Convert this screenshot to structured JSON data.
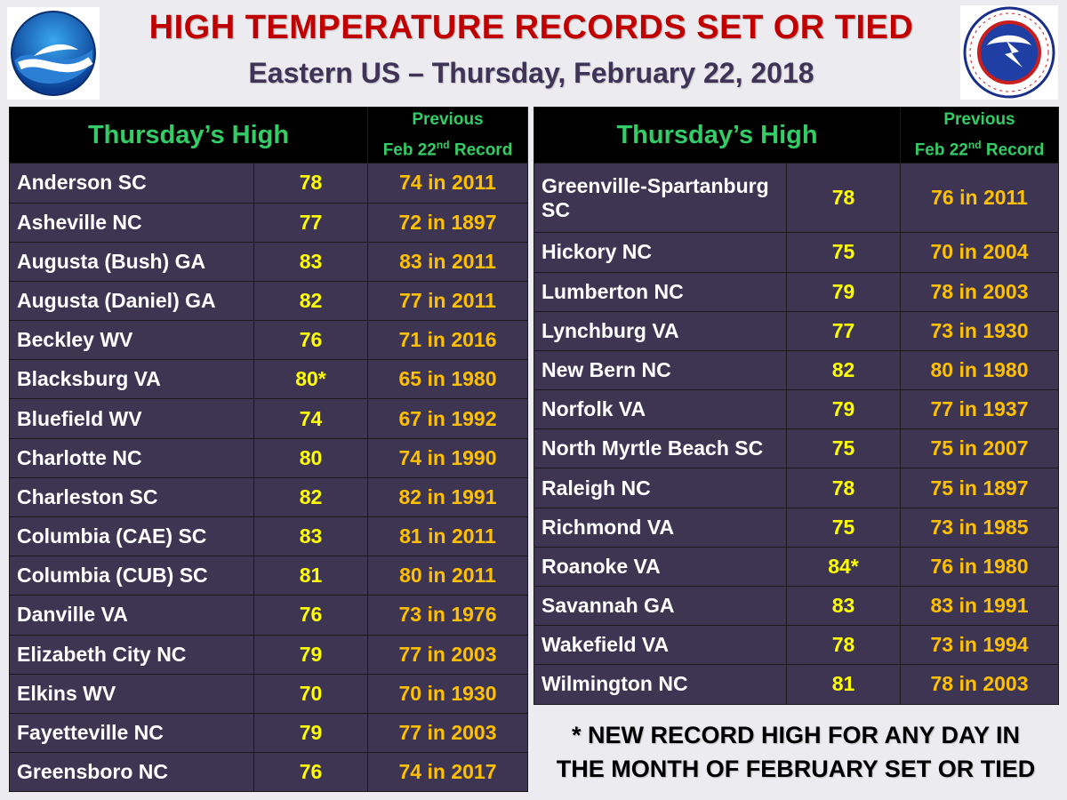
{
  "header": {
    "title": "HIGH TEMPERATURE RECORDS SET OR TIED",
    "subtitle": "Eastern US – Thursday, February 22, 2018"
  },
  "logos": {
    "left": {
      "name": "noaa-logo",
      "text": "NOAA"
    },
    "right": {
      "name": "nws-logo",
      "text": "NATIONAL WEATHER SERVICE"
    }
  },
  "table_headers": {
    "high": "Thursday’s High",
    "prev_line1": "Previous",
    "prev_line2_a": "Feb 22",
    "prev_line2_sup": "nd",
    "prev_line2_b": " Record"
  },
  "left_rows": [
    {
      "city": "Anderson SC",
      "high": "78",
      "prev": "74 in 2011"
    },
    {
      "city": "Asheville NC",
      "high": "77",
      "prev": "72 in 1897"
    },
    {
      "city": "Augusta (Bush) GA",
      "high": "83",
      "prev": "83 in 2011"
    },
    {
      "city": "Augusta (Daniel) GA",
      "high": "82",
      "prev": "77 in 2011"
    },
    {
      "city": "Beckley WV",
      "high": "76",
      "prev": "71 in 2016"
    },
    {
      "city": "Blacksburg VA",
      "high": "80*",
      "prev": "65 in 1980"
    },
    {
      "city": "Bluefield WV",
      "high": "74",
      "prev": "67 in 1992"
    },
    {
      "city": "Charlotte NC",
      "high": "80",
      "prev": "74 in 1990"
    },
    {
      "city": "Charleston SC",
      "high": "82",
      "prev": "82 in 1991"
    },
    {
      "city": "Columbia (CAE) SC",
      "high": "83",
      "prev": "81 in 2011"
    },
    {
      "city": "Columbia (CUB) SC",
      "high": "81",
      "prev": "80 in 2011"
    },
    {
      "city": "Danville VA",
      "high": "76",
      "prev": "73 in 1976"
    },
    {
      "city": "Elizabeth City NC",
      "high": "79",
      "prev": "77 in 2003"
    },
    {
      "city": "Elkins WV",
      "high": "70",
      "prev": "70 in 1930"
    },
    {
      "city": "Fayetteville NC",
      "high": "79",
      "prev": "77 in 2003"
    },
    {
      "city": "Greensboro NC",
      "high": "76",
      "prev": "74 in 2017"
    }
  ],
  "right_rows": [
    {
      "city": "Greenville-Spartanburg SC",
      "high": "78",
      "prev": "76 in 2011"
    },
    {
      "city": "Hickory NC",
      "high": "75",
      "prev": "70 in 2004"
    },
    {
      "city": "Lumberton NC",
      "high": "79",
      "prev": "78 in 2003"
    },
    {
      "city": "Lynchburg VA",
      "high": "77",
      "prev": "73 in 1930"
    },
    {
      "city": "New Bern NC",
      "high": "82",
      "prev": "80 in 1980"
    },
    {
      "city": "Norfolk VA",
      "high": "79",
      "prev": "77 in 1937"
    },
    {
      "city": "North Myrtle Beach SC",
      "high": "75",
      "prev": "75 in 2007"
    },
    {
      "city": "Raleigh NC",
      "high": "78",
      "prev": "75 in 1897"
    },
    {
      "city": "Richmond VA",
      "high": "75",
      "prev": "73 in 1985"
    },
    {
      "city": "Roanoke VA",
      "high": "84*",
      "prev": "76 in 1980"
    },
    {
      "city": "Savannah GA",
      "high": "83",
      "prev": "83 in 1991"
    },
    {
      "city": "Wakefield VA",
      "high": "78",
      "prev": "73 in 1994"
    },
    {
      "city": "Wilmington NC",
      "high": "81",
      "prev": "78 in 2003"
    }
  ],
  "footnote": {
    "line1": "* NEW RECORD HIGH FOR ANY DAY IN",
    "line2": "THE MONTH OF FEBRUARY SET OR TIED"
  },
  "colors": {
    "title": "#c00000",
    "subtitle": "#3f3458",
    "header_bg": "#000000",
    "header_text": "#33cc66",
    "row_bg": "#3e3553",
    "city_text": "#ffffff",
    "high_text": "#ffff00",
    "prev_text": "#ffc000"
  }
}
